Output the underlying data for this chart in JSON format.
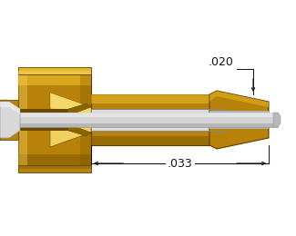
{
  "bg_color": "#ffffff",
  "gold_outer": "#c8960c",
  "gold_dark": "#7a5800",
  "gold_mid": "#b8820a",
  "gold_light": "#e8b824",
  "gold_bright": "#f0d060",
  "gold_very_dark": "#5a3e00",
  "gold_rim": "#d4a020",
  "silver_mid": "#b8b8b8",
  "silver_light": "#dcdcdc",
  "silver_dark": "#888888",
  "white_pin": "#e0e0e0",
  "dim_color": "#111111",
  "label_020": ".020",
  "label_033": ".033",
  "figsize": [
    3.25,
    2.6
  ],
  "dpi": 100
}
